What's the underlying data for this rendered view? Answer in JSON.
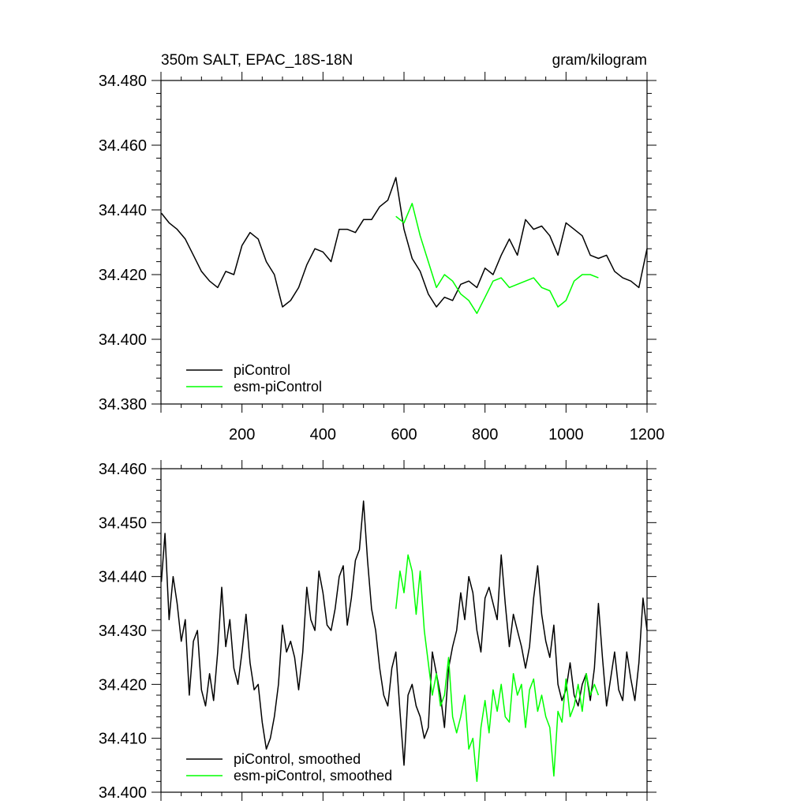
{
  "chart_data": [
    {
      "type": "line",
      "title": "350m SALT, EPAC_18S-18N",
      "units": "gram/kilogram",
      "xlim": [
        0,
        1200
      ],
      "ylim": [
        34.38,
        34.48
      ],
      "x_ticks": [
        200,
        400,
        600,
        800,
        1000,
        1200
      ],
      "y_ticks": [
        "34.380",
        "34.400",
        "34.420",
        "34.440",
        "34.460",
        "34.480"
      ],
      "legend_position": "bottom-left",
      "series": [
        {
          "name": "piControl",
          "color": "#000000",
          "x": [
            1,
            20,
            40,
            60,
            80,
            100,
            120,
            140,
            160,
            180,
            200,
            220,
            240,
            260,
            280,
            300,
            320,
            340,
            360,
            380,
            400,
            420,
            440,
            460,
            480,
            500,
            520,
            540,
            560,
            580,
            600,
            620,
            640,
            660,
            680,
            700,
            720,
            740,
            760,
            780,
            800,
            820,
            840,
            860,
            880,
            900,
            920,
            940,
            960,
            980,
            1000,
            1020,
            1040,
            1060,
            1080,
            1100,
            1120,
            1140,
            1160,
            1180,
            1200
          ],
          "y": [
            34.439,
            34.436,
            34.434,
            34.431,
            34.426,
            34.421,
            34.418,
            34.416,
            34.421,
            34.42,
            34.429,
            34.433,
            34.431,
            34.424,
            34.42,
            34.41,
            34.412,
            34.416,
            34.423,
            34.428,
            34.427,
            34.424,
            34.434,
            34.434,
            34.433,
            34.437,
            34.437,
            34.441,
            34.443,
            34.45,
            34.434,
            34.425,
            34.421,
            34.414,
            34.41,
            34.413,
            34.412,
            34.417,
            34.418,
            34.416,
            34.422,
            34.42,
            34.426,
            34.431,
            34.426,
            34.437,
            34.434,
            34.435,
            34.432,
            34.426,
            34.436,
            34.434,
            34.432,
            34.426,
            34.425,
            34.426,
            34.421,
            34.419,
            34.418,
            34.416,
            34.428
          ]
        },
        {
          "name": "esm-piControl",
          "color": "#00ff00",
          "x": [
            580,
            600,
            620,
            640,
            660,
            680,
            700,
            720,
            740,
            760,
            780,
            800,
            820,
            840,
            860,
            880,
            900,
            920,
            940,
            960,
            980,
            1000,
            1020,
            1040,
            1060,
            1080
          ],
          "y": [
            34.438,
            34.436,
            34.442,
            34.432,
            34.424,
            34.416,
            34.42,
            34.418,
            34.414,
            34.412,
            34.408,
            34.413,
            34.418,
            34.419,
            34.416,
            34.417,
            34.418,
            34.419,
            34.416,
            34.415,
            34.41,
            34.412,
            34.418,
            34.42,
            34.42,
            34.419
          ]
        }
      ]
    },
    {
      "type": "line",
      "title": "",
      "xlim": [
        0,
        1200
      ],
      "ylim": [
        34.4,
        34.46
      ],
      "y_ticks": [
        "34.400",
        "34.410",
        "34.420",
        "34.430",
        "34.440",
        "34.450",
        "34.460"
      ],
      "legend_position": "bottom-left",
      "series": [
        {
          "name": "piControl, smoothed",
          "color": "#000000",
          "x": [
            1,
            10,
            20,
            30,
            40,
            50,
            60,
            70,
            80,
            90,
            100,
            110,
            120,
            130,
            140,
            150,
            160,
            170,
            180,
            190,
            200,
            210,
            220,
            230,
            240,
            250,
            260,
            270,
            280,
            290,
            300,
            310,
            320,
            330,
            340,
            350,
            360,
            370,
            380,
            390,
            400,
            410,
            420,
            430,
            440,
            450,
            460,
            470,
            480,
            490,
            500,
            510,
            520,
            530,
            540,
            550,
            560,
            570,
            580,
            590,
            600,
            610,
            620,
            630,
            640,
            650,
            660,
            670,
            680,
            690,
            700,
            710,
            720,
            730,
            740,
            750,
            760,
            770,
            780,
            790,
            800,
            810,
            820,
            830,
            840,
            850,
            860,
            870,
            880,
            890,
            900,
            910,
            920,
            930,
            940,
            950,
            960,
            970,
            980,
            990,
            1000,
            1010,
            1020,
            1030,
            1040,
            1050,
            1060,
            1070,
            1080,
            1090,
            1100,
            1110,
            1120,
            1130,
            1140,
            1150,
            1160,
            1170,
            1180,
            1190,
            1200
          ],
          "y": [
            34.439,
            34.448,
            34.432,
            34.44,
            34.435,
            34.428,
            34.432,
            34.418,
            34.428,
            34.43,
            34.419,
            34.416,
            34.422,
            34.417,
            34.426,
            34.438,
            34.427,
            34.432,
            34.423,
            34.42,
            34.426,
            34.433,
            34.424,
            34.419,
            34.42,
            34.413,
            34.408,
            34.41,
            34.414,
            34.42,
            34.431,
            34.426,
            34.428,
            34.425,
            34.419,
            34.426,
            34.438,
            34.432,
            34.43,
            34.441,
            34.437,
            34.431,
            34.43,
            34.434,
            34.44,
            34.442,
            34.431,
            34.436,
            34.443,
            34.445,
            34.454,
            34.443,
            34.434,
            34.43,
            34.423,
            34.418,
            34.416,
            34.423,
            34.426,
            34.415,
            34.405,
            34.418,
            34.42,
            34.416,
            34.414,
            34.41,
            34.412,
            34.426,
            34.422,
            34.418,
            34.412,
            34.423,
            34.427,
            34.43,
            34.437,
            34.432,
            34.44,
            34.437,
            34.43,
            34.426,
            34.436,
            34.438,
            34.435,
            34.432,
            34.444,
            34.435,
            34.427,
            34.433,
            34.43,
            34.427,
            34.423,
            34.427,
            34.436,
            34.442,
            34.433,
            34.428,
            34.425,
            34.431,
            34.42,
            34.417,
            34.419,
            34.424,
            34.418,
            34.416,
            34.42,
            34.422,
            34.417,
            34.423,
            34.435,
            34.425,
            34.416,
            34.421,
            34.426,
            34.419,
            34.417,
            34.426,
            34.421,
            34.417,
            34.424,
            34.436,
            34.43
          ]
        },
        {
          "name": "esm-piControl, smoothed",
          "color": "#00ff00",
          "x": [
            580,
            590,
            600,
            610,
            620,
            630,
            640,
            650,
            660,
            670,
            680,
            690,
            700,
            710,
            720,
            730,
            740,
            750,
            760,
            770,
            780,
            790,
            800,
            810,
            820,
            830,
            840,
            850,
            860,
            870,
            880,
            890,
            900,
            910,
            920,
            930,
            940,
            950,
            960,
            970,
            980,
            990,
            1000,
            1010,
            1020,
            1030,
            1040,
            1050,
            1060,
            1070,
            1080
          ],
          "y": [
            34.434,
            34.441,
            34.437,
            34.444,
            34.441,
            34.433,
            34.441,
            34.43,
            34.424,
            34.418,
            34.422,
            34.416,
            34.418,
            34.425,
            34.414,
            34.411,
            34.414,
            34.418,
            34.408,
            34.41,
            34.402,
            34.412,
            34.417,
            34.411,
            34.419,
            34.415,
            34.42,
            34.414,
            34.413,
            34.422,
            34.418,
            34.42,
            34.412,
            34.419,
            34.421,
            34.415,
            34.418,
            34.414,
            34.412,
            34.403,
            34.415,
            34.413,
            34.421,
            34.414,
            34.416,
            34.42,
            34.415,
            34.422,
            34.418,
            34.42,
            34.418
          ]
        }
      ]
    }
  ]
}
